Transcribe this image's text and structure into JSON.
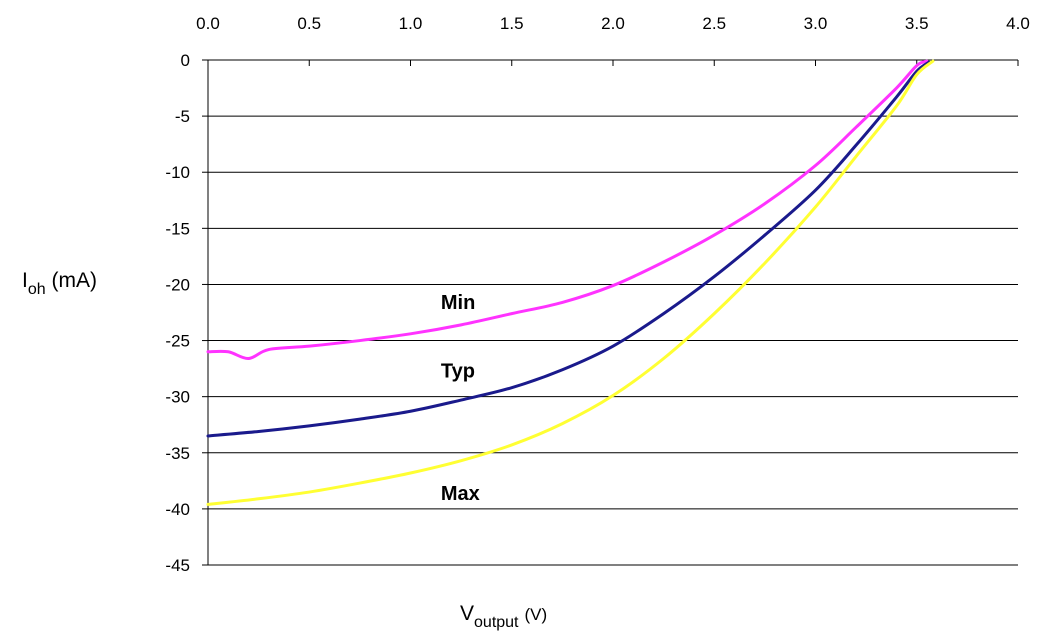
{
  "chart_data": {
    "type": "line",
    "xlabel": {
      "main": "V",
      "sub": "output",
      "unit": "(V)"
    },
    "ylabel": {
      "main": "I",
      "sub": "oh",
      "unit": " (mA)"
    },
    "xlim": [
      0,
      4
    ],
    "ylim": [
      -45,
      0
    ],
    "x_ticks": [
      "0.0",
      "0.5",
      "1.0",
      "1.5",
      "2.0",
      "2.5",
      "3.0",
      "3.5",
      "4.0"
    ],
    "y_ticks": [
      "0",
      "-5",
      "-10",
      "-15",
      "-20",
      "-25",
      "-30",
      "-35",
      "-40",
      "-45"
    ],
    "x_axis_position": "top",
    "grid": "horizontal",
    "series": [
      {
        "name": "Min",
        "color": "#ff33ff",
        "points": [
          [
            0,
            -26.0
          ],
          [
            0.1,
            -26.0
          ],
          [
            0.2,
            -26.6
          ],
          [
            0.3,
            -25.8
          ],
          [
            0.5,
            -25.5
          ],
          [
            0.75,
            -25.0
          ],
          [
            1.0,
            -24.4
          ],
          [
            1.25,
            -23.6
          ],
          [
            1.5,
            -22.6
          ],
          [
            1.75,
            -21.6
          ],
          [
            2.0,
            -20.1
          ],
          [
            2.25,
            -18.0
          ],
          [
            2.5,
            -15.6
          ],
          [
            2.75,
            -12.8
          ],
          [
            3.0,
            -9.4
          ],
          [
            3.2,
            -6.0
          ],
          [
            3.4,
            -2.5
          ],
          [
            3.5,
            -0.5
          ],
          [
            3.55,
            -0.1
          ]
        ],
        "label_x": 1.15,
        "label_y": -22.2
      },
      {
        "name": "Typ",
        "color": "#1a1a8c",
        "points": [
          [
            0,
            -33.5
          ],
          [
            0.25,
            -33.1
          ],
          [
            0.5,
            -32.6
          ],
          [
            0.75,
            -32.0
          ],
          [
            1.0,
            -31.3
          ],
          [
            1.25,
            -30.3
          ],
          [
            1.5,
            -29.2
          ],
          [
            1.75,
            -27.6
          ],
          [
            2.0,
            -25.5
          ],
          [
            2.25,
            -22.6
          ],
          [
            2.5,
            -19.3
          ],
          [
            2.75,
            -15.6
          ],
          [
            3.0,
            -11.6
          ],
          [
            3.2,
            -7.6
          ],
          [
            3.4,
            -3.3
          ],
          [
            3.5,
            -1.0
          ],
          [
            3.56,
            -0.2
          ]
        ],
        "label_x": 1.15,
        "label_y": -28.3
      },
      {
        "name": "Max",
        "color": "#ffff33",
        "points": [
          [
            0,
            -39.6
          ],
          [
            0.25,
            -39.1
          ],
          [
            0.5,
            -38.5
          ],
          [
            0.75,
            -37.7
          ],
          [
            1.0,
            -36.8
          ],
          [
            1.25,
            -35.7
          ],
          [
            1.5,
            -34.3
          ],
          [
            1.75,
            -32.4
          ],
          [
            2.0,
            -29.9
          ],
          [
            2.25,
            -26.6
          ],
          [
            2.5,
            -22.6
          ],
          [
            2.75,
            -18.1
          ],
          [
            3.0,
            -13.1
          ],
          [
            3.2,
            -8.6
          ],
          [
            3.4,
            -4.1
          ],
          [
            3.5,
            -1.3
          ],
          [
            3.58,
            -0.1
          ]
        ],
        "label_x": 1.15,
        "label_y": -39.2
      }
    ]
  }
}
